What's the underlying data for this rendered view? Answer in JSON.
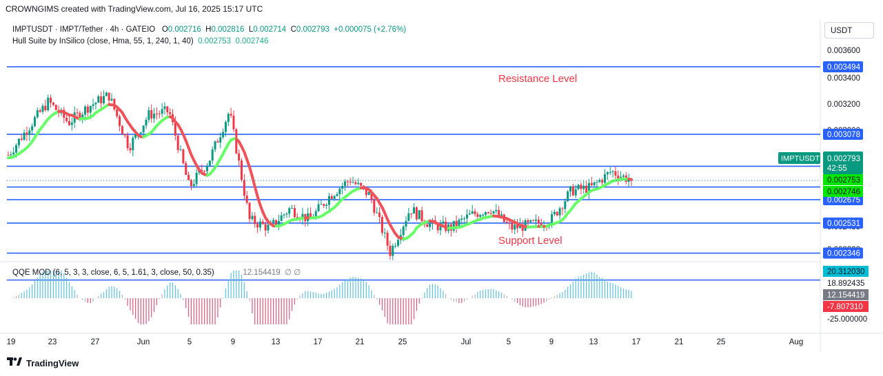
{
  "header": {
    "text": "CROWNGIMS created with TradingView.com, Jul 16, 2025 15:17 UTC"
  },
  "legend": {
    "symbol": "IMPTUSDT · IMPT/Tether · 4h · GATEIO",
    "o_label": "O",
    "o_value": "0.002716",
    "h_label": "H",
    "h_value": "0.002816",
    "l_label": "L",
    "l_value": "0.002714",
    "c_label": "C",
    "c_value": "0.002793",
    "change": "+0.000075 (+2.76%)",
    "indicator": "Hull Suite by InSilico (close, Hma, 55, 1, 240, 1, 40)",
    "ind_v1": "0.002753",
    "ind_v2": "0.002746"
  },
  "qqe_legend": {
    "label": "QQE MOD (6, 5, 3, 3, close, 6, 5, 1.61, 3, close, 50, 0.35)",
    "value": "12.154419",
    "icons": "∅ ∅"
  },
  "currency": "USDT",
  "annotations": {
    "resistance": "Resistance Level",
    "support": "Support Level"
  },
  "symbol_tag": "IMPTUSDT",
  "price_tag": {
    "price": "0.002793",
    "countdown": "42:55"
  },
  "hull_tags": [
    "0.002753",
    "0.002746"
  ],
  "qqe_tags": {
    "top": "20.312030",
    "mid": "12.154419",
    "neg": "-7.807310"
  },
  "footer": {
    "brand": "TradingView",
    "logo_icon": "tradingview-logo-icon"
  },
  "colors": {
    "up": "#089981",
    "down": "#f23645",
    "hull_green": "#66ff66",
    "hull_red": "#f0525a",
    "level_line": "#2962ff",
    "qqe_up": "#5bc0de",
    "qqe_down": "#d9577a",
    "qqe_grey": "#b2b5be"
  },
  "chart_data": [
    {
      "type": "candlestick",
      "title": "IMPTUSDT · IMPT/Tether · 4h · GATEIO",
      "y_axis_ticks": [
        "0.003600",
        "0.003400",
        "0.003200",
        "0.003000",
        "0.002435",
        "0.002228"
      ],
      "ylim": [
        0.00218,
        0.00365
      ],
      "x_tick_labels": [
        "19",
        "23",
        "27",
        "Jun",
        "5",
        "9",
        "13",
        "17",
        "21",
        "25",
        "Jul",
        "5",
        "9",
        "13",
        "17",
        "21",
        "25",
        "Aug"
      ],
      "horizontal_levels": [
        0.003494,
        0.003078,
        0.002881,
        0.002753,
        0.002675,
        0.002531,
        0.002346,
        0.00218
      ],
      "level_labels": [
        "0.003494",
        "0.003078",
        "0.002881",
        "0.002675",
        "0.002531",
        "0.002346"
      ],
      "price_path": [
        [
          "19",
          0.00295
        ],
        [
          "21",
          0.00312
        ],
        [
          "23",
          0.00328
        ],
        [
          "25",
          0.00315
        ],
        [
          "27",
          0.00325
        ],
        [
          "29",
          0.00332
        ],
        [
          "Jun",
          0.003
        ],
        [
          "3",
          0.0032
        ],
        [
          "5",
          0.00322
        ],
        [
          "6",
          0.00275
        ],
        [
          "9",
          0.00292
        ],
        [
          "11",
          0.00322
        ],
        [
          "12",
          0.00255
        ],
        [
          "13",
          0.0025
        ],
        [
          "15",
          0.00262
        ],
        [
          "17",
          0.00255
        ],
        [
          "19",
          0.0027
        ],
        [
          "20",
          0.0028
        ],
        [
          "21",
          0.0027
        ],
        [
          "22",
          0.00235
        ],
        [
          "24",
          0.00262
        ],
        [
          "26",
          0.00252
        ],
        [
          "28",
          0.0025
        ],
        [
          "Jul",
          0.00258
        ],
        [
          "3",
          0.00262
        ],
        [
          "5",
          0.0025
        ],
        [
          "7",
          0.00252
        ],
        [
          "9",
          0.00255
        ],
        [
          "11",
          0.00273
        ],
        [
          "13",
          0.00275
        ],
        [
          "15",
          0.00285
        ],
        [
          "16",
          0.002793
        ]
      ],
      "last_close": 0.002793
    },
    {
      "type": "bar",
      "title": "QQE MOD (6, 5, 3, 3, close, 6, 5, 1.61, 3, close, 50, 0.35)",
      "y_axis_ticks": [
        "18.892435",
        "-25.000000"
      ],
      "value": 12.154419
    }
  ]
}
